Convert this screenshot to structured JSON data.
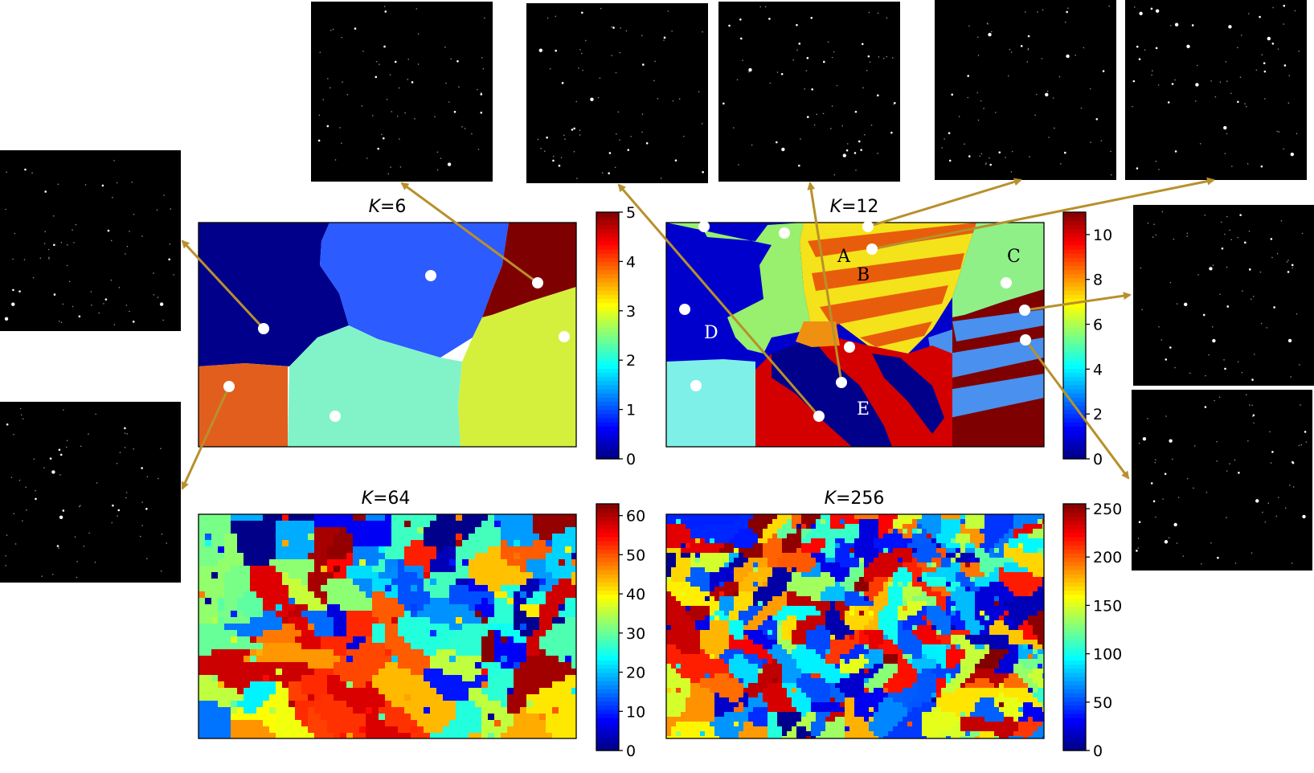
{
  "figure": {
    "colors": {
      "arrow": "#b8902c",
      "marker": "#ffffff",
      "patch_bg": "#000000",
      "frame": "#000000",
      "label_dark": "#000000",
      "label_light": "#ffffff"
    },
    "colormap": "jet",
    "panels": [
      {
        "id": "k6",
        "title_var": "K",
        "title_eq": "=6",
        "k": 6,
        "colorbar_ticks": [
          "0",
          "1",
          "2",
          "3",
          "4",
          "5"
        ],
        "colorbar_max": 5
      },
      {
        "id": "k12",
        "title_var": "K",
        "title_eq": "=12",
        "k": 12,
        "colorbar_ticks": [
          "0",
          "2",
          "4",
          "6",
          "8",
          "10"
        ],
        "colorbar_max": 11
      },
      {
        "id": "k64",
        "title_var": "K",
        "title_eq": "=64",
        "k": 64,
        "colorbar_ticks": [
          "0",
          "10",
          "20",
          "30",
          "40",
          "50",
          "60"
        ],
        "colorbar_max": 63
      },
      {
        "id": "k256",
        "title_var": "K",
        "title_eq": "=256",
        "k": 256,
        "colorbar_ticks": [
          "0",
          "50",
          "100",
          "150",
          "200",
          "250"
        ],
        "colorbar_max": 255
      }
    ],
    "region_labels": [
      {
        "text": "A",
        "tone": "dark"
      },
      {
        "text": "B",
        "tone": "dark"
      },
      {
        "text": "C",
        "tone": "dark"
      },
      {
        "text": "D",
        "tone": "light"
      },
      {
        "text": "E",
        "tone": "light"
      }
    ]
  }
}
